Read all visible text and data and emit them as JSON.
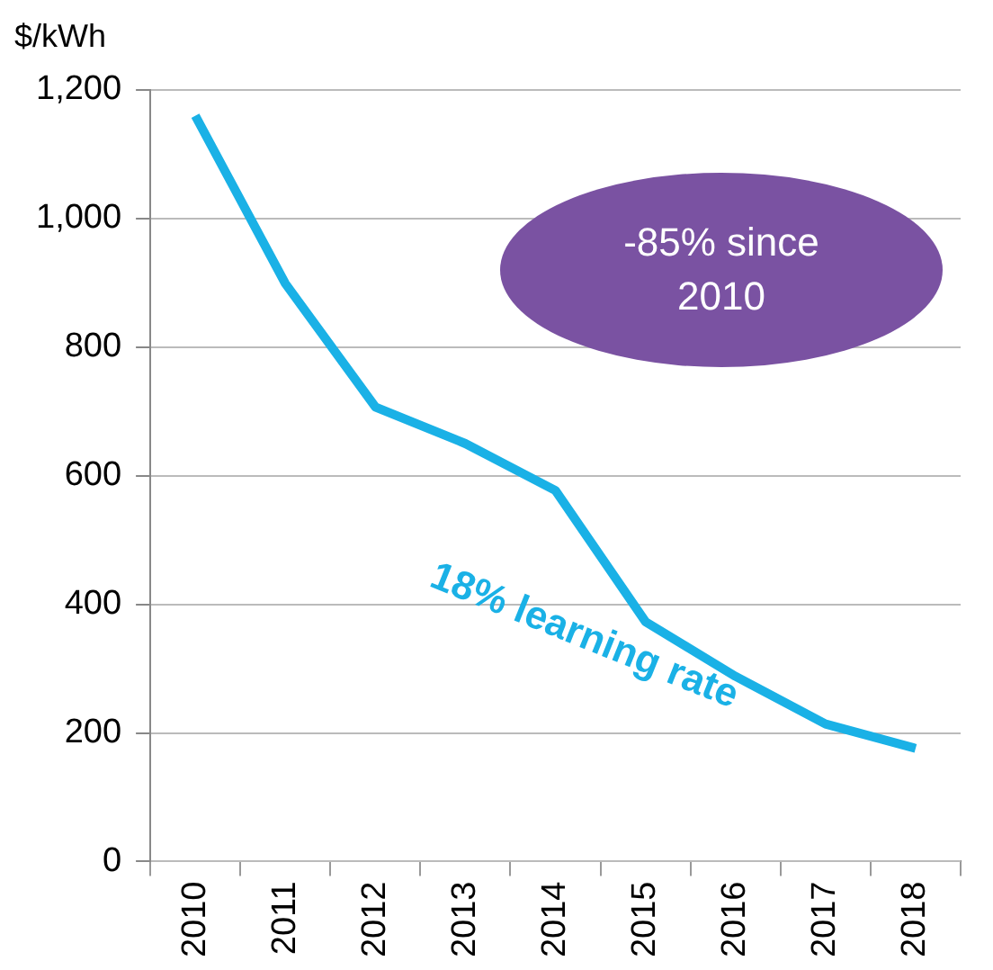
{
  "chart_data": {
    "type": "line",
    "ylabel": "$/kWh",
    "categories": [
      "2010",
      "2011",
      "2012",
      "2013",
      "2014",
      "2015",
      "2016",
      "2017",
      "2018"
    ],
    "series": [
      {
        "color": "#1ab1e6",
        "values": [
          1160,
          899,
          707,
          650,
          577,
          373,
          288,
          214,
          176
        ]
      }
    ],
    "ylim": [
      0,
      1200
    ],
    "yticks": [
      0,
      {
        "value": 200,
        "label": "200"
      },
      {
        "value": 400,
        "label": "400"
      },
      {
        "value": 600,
        "label": "600"
      },
      {
        "value": 800,
        "label": "800"
      },
      {
        "value": 1000,
        "label": "1,000"
      },
      {
        "value": 1200,
        "label": "1,200"
      }
    ],
    "grid": "y",
    "legend": false,
    "marker": "none",
    "line_style": "solid",
    "annotations": [
      "-85% since 2010",
      "18% learning rate"
    ]
  }
}
